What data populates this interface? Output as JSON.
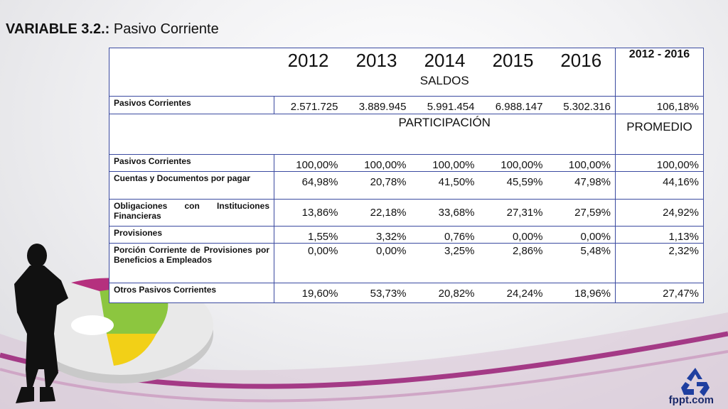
{
  "title": {
    "bold": "VARIABLE 3.2.:",
    "text": "Pasivo Corriente"
  },
  "years": [
    "2012",
    "2013",
    "2014",
    "2015",
    "2016"
  ],
  "range_label": "2012 - 2016",
  "saldos_label": "SALDOS",
  "participacion_label": "PARTICIPACIÓN",
  "promedio_label": "PROMEDIO",
  "saldos_row": {
    "label": "Pasivos Corrientes",
    "values": [
      "2.571.725",
      "3.889.945",
      "5.991.454",
      "6.988.147",
      "5.302.316"
    ],
    "last": "106,18%"
  },
  "rows": [
    {
      "label": "Pasivos Corrientes",
      "values": [
        "100,00%",
        "100,00%",
        "100,00%",
        "100,00%",
        "100,00%"
      ],
      "last": "100,00%"
    },
    {
      "label": "Cuentas y Documentos por pagar",
      "values": [
        "64,98%",
        "20,78%",
        "41,50%",
        "45,59%",
        "47,98%"
      ],
      "last": "44,16%"
    },
    {
      "label": "Obligaciones con Instituciones Financieras",
      "values": [
        "13,86%",
        "22,18%",
        "33,68%",
        "27,31%",
        "27,59%"
      ],
      "last": "24,92%"
    },
    {
      "label": "Provisiones",
      "values": [
        "1,55%",
        "3,32%",
        "0,76%",
        "0,00%",
        "0,00%"
      ],
      "last": "1,13%"
    },
    {
      "label": "Porción Corriente de Provisiones por Beneficios a Empleados",
      "values": [
        "0,00%",
        "0,00%",
        "3,25%",
        "2,86%",
        "5,48%"
      ],
      "last": "2,32%"
    },
    {
      "label": "Otros Pasivos Corrientes",
      "values": [
        "19,60%",
        "53,73%",
        "20,82%",
        "24,24%",
        "18,96%"
      ],
      "last": "27,47%"
    }
  ],
  "logo": "fppt.com",
  "icons": [
    "woman-silhouette-icon",
    "pie-ring-icon",
    "recycle-icon"
  ]
}
